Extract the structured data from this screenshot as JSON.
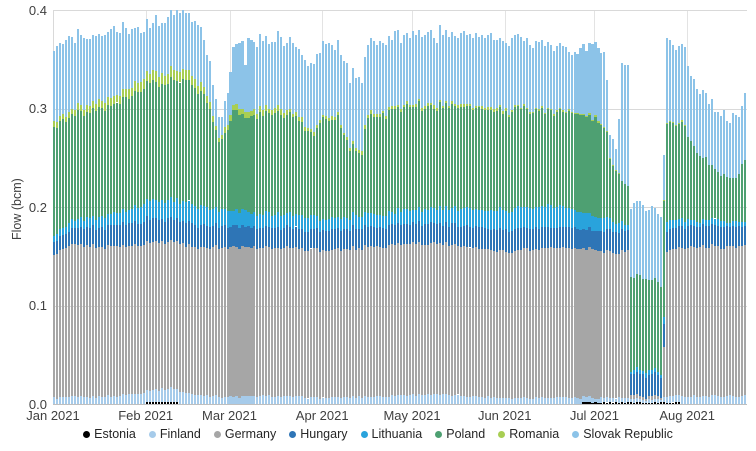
{
  "chart_data": {
    "type": "bar",
    "stacked": true,
    "title": "",
    "xlabel": "",
    "ylabel": "Flow (bcm)",
    "ylim": [
      0,
      0.4
    ],
    "yticks": [
      {
        "value": 0.0,
        "label": "0.0"
      },
      {
        "value": 0.1,
        "label": "0.1"
      },
      {
        "value": 0.2,
        "label": "0.2"
      },
      {
        "value": 0.3,
        "label": "0.3"
      },
      {
        "value": 0.4,
        "label": "0.4"
      }
    ],
    "grid": true,
    "legend_position": "bottom",
    "n_days": 232,
    "months": [
      {
        "label": "Jan 2021",
        "day": 0
      },
      {
        "label": "Feb 2021",
        "day": 31
      },
      {
        "label": "Mar 2021",
        "day": 59
      },
      {
        "label": "Apr 2021",
        "day": 90
      },
      {
        "label": "May 2021",
        "day": 120
      },
      {
        "label": "Jun 2021",
        "day": 151
      },
      {
        "label": "Jul 2021",
        "day": 181
      },
      {
        "label": "Aug 2021",
        "day": 212
      }
    ],
    "series": [
      {
        "name": "Estonia",
        "color": "#000000",
        "jitter": 0.0003,
        "anchors": [
          [
            0,
            0
          ],
          [
            30,
            0
          ],
          [
            31,
            0.002
          ],
          [
            41,
            0.002
          ],
          [
            42,
            0
          ],
          [
            176,
            0
          ],
          [
            177,
            0.0015
          ],
          [
            209,
            0.0015
          ],
          [
            210,
            0
          ],
          [
            231,
            0
          ]
        ]
      },
      {
        "name": "Finland",
        "color": "#A6CBEA",
        "jitter": 0.0012,
        "anchors": [
          [
            0,
            0.006
          ],
          [
            20,
            0.008
          ],
          [
            31,
            0.012
          ],
          [
            40,
            0.014
          ],
          [
            46,
            0.01
          ],
          [
            58,
            0.007
          ],
          [
            75,
            0.008
          ],
          [
            90,
            0.006
          ],
          [
            110,
            0.008
          ],
          [
            125,
            0.01
          ],
          [
            140,
            0.008
          ],
          [
            151,
            0.006
          ],
          [
            170,
            0.007
          ],
          [
            181,
            0.005
          ],
          [
            192,
            0.004
          ],
          [
            193,
            0.003
          ],
          [
            203,
            0.003
          ],
          [
            205,
            0.006
          ],
          [
            212,
            0.008
          ],
          [
            231,
            0.008
          ]
        ]
      },
      {
        "name": "Germany",
        "color": "#A6A6A6",
        "jitter": 0.0015,
        "anchors": [
          [
            0,
            0.146
          ],
          [
            6,
            0.154
          ],
          [
            31,
            0.15
          ],
          [
            45,
            0.15
          ],
          [
            59,
            0.152
          ],
          [
            90,
            0.15
          ],
          [
            120,
            0.154
          ],
          [
            151,
            0.149
          ],
          [
            165,
            0.152
          ],
          [
            181,
            0.15
          ],
          [
            186,
            0.148
          ],
          [
            189,
            0.146
          ],
          [
            190,
            0.15
          ],
          [
            192,
            0.15
          ],
          [
            193,
            0.003
          ],
          [
            203,
            0.003
          ],
          [
            204,
            0.05
          ],
          [
            205,
            0.146
          ],
          [
            212,
            0.152
          ],
          [
            231,
            0.152
          ]
        ]
      },
      {
        "name": "Hungary",
        "color": "#2E75B6",
        "jitter": 0.0012,
        "anchors": [
          [
            0,
            0.013
          ],
          [
            10,
            0.018
          ],
          [
            31,
            0.024
          ],
          [
            59,
            0.021
          ],
          [
            90,
            0.02
          ],
          [
            120,
            0.02
          ],
          [
            151,
            0.022
          ],
          [
            181,
            0.02
          ],
          [
            193,
            0.022
          ],
          [
            203,
            0.022
          ],
          [
            205,
            0.022
          ],
          [
            212,
            0.022
          ],
          [
            231,
            0.02
          ]
        ]
      },
      {
        "name": "Lithuania",
        "color": "#29A3DC",
        "jitter": 0.0015,
        "anchors": [
          [
            0,
            0.007
          ],
          [
            15,
            0.01
          ],
          [
            31,
            0.018
          ],
          [
            45,
            0.02
          ],
          [
            59,
            0.016
          ],
          [
            90,
            0.012
          ],
          [
            120,
            0.014
          ],
          [
            151,
            0.02
          ],
          [
            168,
            0.022
          ],
          [
            181,
            0.014
          ],
          [
            190,
            0.008
          ],
          [
            193,
            0.004
          ],
          [
            203,
            0.004
          ],
          [
            205,
            0.01
          ],
          [
            212,
            0.006
          ],
          [
            231,
            0.005
          ]
        ]
      },
      {
        "name": "Poland",
        "color": "#4EA072",
        "jitter": 0.003,
        "anchors": [
          [
            0,
            0.11
          ],
          [
            10,
            0.108
          ],
          [
            20,
            0.112
          ],
          [
            31,
            0.118
          ],
          [
            44,
            0.122
          ],
          [
            50,
            0.112
          ],
          [
            52,
            0.1
          ],
          [
            55,
            0.07
          ],
          [
            57,
            0.075
          ],
          [
            60,
            0.1
          ],
          [
            64,
            0.095
          ],
          [
            70,
            0.102
          ],
          [
            80,
            0.1
          ],
          [
            87,
            0.082
          ],
          [
            89,
            0.1
          ],
          [
            95,
            0.102
          ],
          [
            99,
            0.068
          ],
          [
            103,
            0.065
          ],
          [
            105,
            0.1
          ],
          [
            120,
            0.105
          ],
          [
            135,
            0.102
          ],
          [
            151,
            0.1
          ],
          [
            160,
            0.098
          ],
          [
            170,
            0.095
          ],
          [
            181,
            0.1
          ],
          [
            185,
            0.088
          ],
          [
            186,
            0.058
          ],
          [
            189,
            0.052
          ],
          [
            190,
            0.042
          ],
          [
            192,
            0.04
          ],
          [
            193,
            0.094
          ],
          [
            203,
            0.092
          ],
          [
            204,
            0.12
          ],
          [
            205,
            0.098
          ],
          [
            211,
            0.096
          ],
          [
            212,
            0.082
          ],
          [
            216,
            0.068
          ],
          [
            222,
            0.048
          ],
          [
            228,
            0.044
          ],
          [
            230,
            0.058
          ],
          [
            231,
            0.06
          ]
        ]
      },
      {
        "name": "Romania",
        "color": "#A8CE53",
        "jitter": 0.0008,
        "anchors": [
          [
            0,
            0.005
          ],
          [
            15,
            0.007
          ],
          [
            31,
            0.01
          ],
          [
            45,
            0.011
          ],
          [
            52,
            0.006
          ],
          [
            55,
            0.004
          ],
          [
            60,
            0.006
          ],
          [
            75,
            0.005
          ],
          [
            90,
            0.003
          ],
          [
            120,
            0.003
          ],
          [
            151,
            0.002
          ],
          [
            181,
            0.001
          ],
          [
            190,
            0
          ],
          [
            203,
            0
          ],
          [
            205,
            0.001
          ],
          [
            211,
            0.001
          ],
          [
            212,
            0
          ],
          [
            231,
            0
          ]
        ]
      },
      {
        "name": "Slovak Republic",
        "color": "#8CC3E8",
        "jitter": 0.005,
        "anchors": [
          [
            0,
            0.074
          ],
          [
            10,
            0.07
          ],
          [
            20,
            0.068
          ],
          [
            31,
            0.05
          ],
          [
            40,
            0.058
          ],
          [
            44,
            0.056
          ],
          [
            48,
            0.06
          ],
          [
            52,
            0.04
          ],
          [
            55,
            0.018
          ],
          [
            57,
            0.025
          ],
          [
            60,
            0.055
          ],
          [
            63,
            0.07
          ],
          [
            64,
            0.045
          ],
          [
            65,
            0.072
          ],
          [
            80,
            0.07
          ],
          [
            87,
            0.065
          ],
          [
            90,
            0.072
          ],
          [
            99,
            0.07
          ],
          [
            103,
            0.072
          ],
          [
            110,
            0.072
          ],
          [
            120,
            0.07
          ],
          [
            135,
            0.072
          ],
          [
            151,
            0.07
          ],
          [
            160,
            0.068
          ],
          [
            170,
            0.062
          ],
          [
            175,
            0.06
          ],
          [
            181,
            0.078
          ],
          [
            184,
            0.075
          ],
          [
            186,
            0.028
          ],
          [
            188,
            0.024
          ],
          [
            189,
            0.05
          ],
          [
            190,
            0.12
          ],
          [
            192,
            0.118
          ],
          [
            193,
            0.072
          ],
          [
            202,
            0.07
          ],
          [
            203,
            0.068
          ],
          [
            204,
            0.05
          ],
          [
            205,
            0.085
          ],
          [
            208,
            0.08
          ],
          [
            211,
            0.075
          ],
          [
            212,
            0.07
          ],
          [
            215,
            0.068
          ],
          [
            218,
            0.066
          ],
          [
            222,
            0.062
          ],
          [
            226,
            0.06
          ],
          [
            229,
            0.062
          ],
          [
            231,
            0.065
          ]
        ]
      }
    ],
    "legend": [
      "Estonia",
      "Finland",
      "Germany",
      "Hungary",
      "Lithuania",
      "Poland",
      "Romania",
      "Slovak Republic"
    ],
    "colors": {
      "grid": "#d9d9d9",
      "axis": "#bfbfbf",
      "text": "#404040"
    }
  }
}
